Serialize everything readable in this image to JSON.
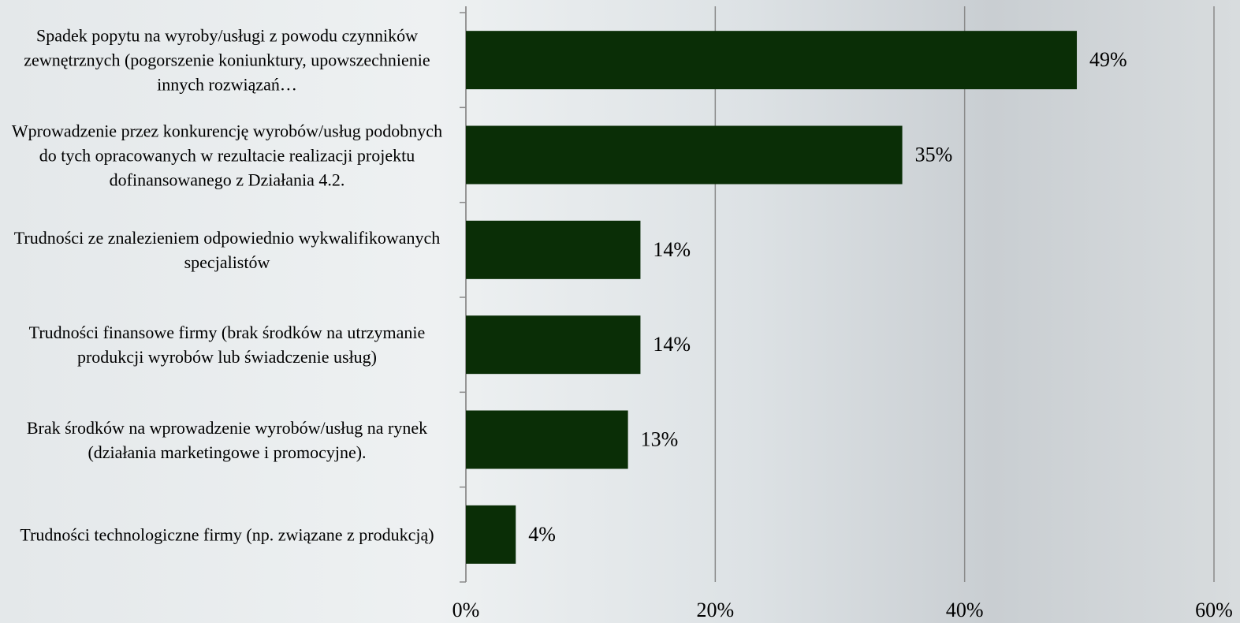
{
  "chart_data": {
    "type": "bar",
    "orientation": "horizontal",
    "categories": [
      "Spadek popytu na wyroby/usługi z powodu czynników zewnętrznych (pogorszenie koniunktury, upowszechnienie innych rozwiązań…",
      "Wprowadzenie przez konkurencję wyrobów/usług podobnych do tych opracowanych w rezultacie realizacji projektu dofinansowanego z Działania 4.2.",
      "Trudności ze znalezieniem odpowiednio wykwalifikowanych specjalistów",
      "Trudności finansowe firmy (brak środków na utrzymanie produkcji wyrobów lub świadczenie usług)",
      "Brak środków na wprowadzenie wyrobów/usług na rynek (działania marketingowe i promocyjne).",
      "Trudności technologiczne firmy (np. związane z produkcją)"
    ],
    "values": [
      49,
      35,
      14,
      14,
      13,
      4
    ],
    "value_labels": [
      "49%",
      "35%",
      "14%",
      "14%",
      "13%",
      "4%"
    ],
    "color": "#0a2e06",
    "xlim": [
      0,
      60
    ],
    "xticks": [
      {
        "value": 0,
        "label": "0%"
      },
      {
        "value": 20,
        "label": "20%"
      },
      {
        "value": 40,
        "label": "40%"
      },
      {
        "value": 60,
        "label": "60%"
      }
    ],
    "grid": true
  }
}
